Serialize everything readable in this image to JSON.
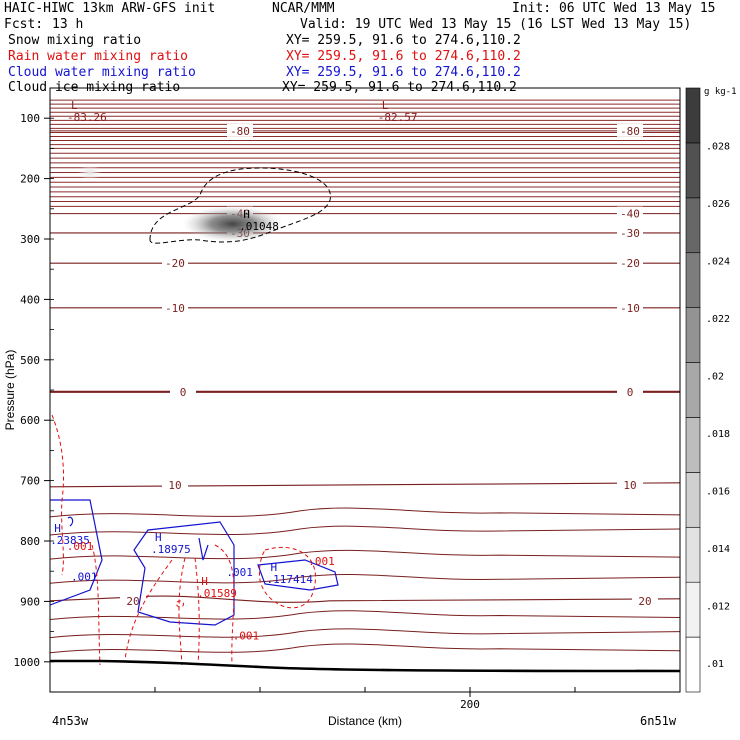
{
  "header": {
    "model": "HAIC-HIWC 13km ARW-GFS init",
    "org": "NCAR/MMM",
    "init": "Init: 06 UTC Wed 13 May 15",
    "fcst_label": "Fcst:",
    "fcst_value": "13 h",
    "valid": "Valid: 19 UTC Wed 13 May 15 (16 LST Wed 13 May 15)",
    "fields": [
      {
        "name": "Snow mixing ratio",
        "xy": "XY= 259.5, 91.6 to 274.6,110.2",
        "color": "#000000"
      },
      {
        "name": "Rain water mixing ratio",
        "xy": "XY= 259.5, 91.6 to 274.6,110.2",
        "color": "#e01010"
      },
      {
        "name": "Cloud water mixing ratio",
        "xy": "XY= 259.5, 91.6 to 274.6,110.2",
        "color": "#1414d0"
      },
      {
        "name": "Cloud ice mixing ratio",
        "xy": "XY= 259.5, 91.6 to 274.6,110.2",
        "color": "#000000"
      }
    ]
  },
  "chart_data": {
    "type": "heatmap",
    "title": "HAIC-HIWC 13km ARW-GFS init",
    "xlabel": "Distance (km)",
    "ylabel": "Pressure (hPa)",
    "x_ticks": [
      "200"
    ],
    "xlim": [
      0,
      300
    ],
    "y_ticks": [
      "100",
      "200",
      "300",
      "400",
      "500",
      "600",
      "700",
      "800",
      "900",
      "1000"
    ],
    "ylim": [
      1050,
      50
    ],
    "start_point": "4n53w",
    "end_point": "6n51w",
    "colorbar": {
      "unit": "g kg-1",
      "ticks": [
        ".01",
        ".012",
        ".014",
        ".016",
        ".018",
        ".02",
        ".022",
        ".024",
        ".026",
        ".028"
      ],
      "range": [
        0.009,
        0.03
      ],
      "colors": [
        "#ffffff",
        "#f2f2f2",
        "#e2e2e2",
        "#d0d0d0",
        "#bdbdbd",
        "#a8a8a8",
        "#939393",
        "#7d7d7d",
        "#676767",
        "#515151",
        "#3c3c3c"
      ]
    },
    "temperature_contours": [
      {
        "value": -80,
        "label": "-80",
        "p": 121
      },
      {
        "value": -40,
        "label": "-40",
        "p": 258
      },
      {
        "value": -30,
        "label": "-30",
        "p": 290
      },
      {
        "value": -20,
        "label": "-20",
        "p": 340
      },
      {
        "value": -10,
        "label": "-10",
        "p": 414
      },
      {
        "value": 0,
        "label": "0",
        "p": 553
      },
      {
        "value": 10,
        "label": "10",
        "p": 707
      },
      {
        "value": 20,
        "label": "20",
        "p": 899
      }
    ],
    "extrema": [
      {
        "kind": "L",
        "value": "-83.26",
        "x": 10,
        "p": 90,
        "color": "#8b1a1a"
      },
      {
        "kind": "L",
        "value": "-82.57",
        "x": 158,
        "p": 90,
        "color": "#8b1a1a"
      },
      {
        "kind": "H",
        "value": ".01048",
        "x": 92,
        "p": 270,
        "color": "#000000"
      },
      {
        "kind": "H",
        "value": ".23835",
        "x": 2,
        "p": 790,
        "color": "#1414d0"
      },
      {
        "kind": "H",
        "value": ".18975",
        "x": 50,
        "p": 805,
        "color": "#1414d0"
      },
      {
        "kind": "H",
        "value": ".117414",
        "x": 105,
        "p": 855,
        "color": "#1414d0"
      },
      {
        "kind": "H",
        "value": ".01589",
        "x": 72,
        "p": 878,
        "color": "#e01010"
      }
    ],
    "contour_labels": [
      {
        "text": ".001",
        "x": 8,
        "p": 815,
        "color": "#e01010"
      },
      {
        "text": ".001",
        "x": 10,
        "p": 865,
        "color": "#1414d0"
      },
      {
        "text": ".001",
        "x": 84,
        "p": 858,
        "color": "#1414d0"
      },
      {
        "text": ".001",
        "x": 123,
        "p": 840,
        "color": "#e01010"
      },
      {
        "text": ".001",
        "x": 87,
        "p": 963,
        "color": "#e01010"
      }
    ]
  }
}
